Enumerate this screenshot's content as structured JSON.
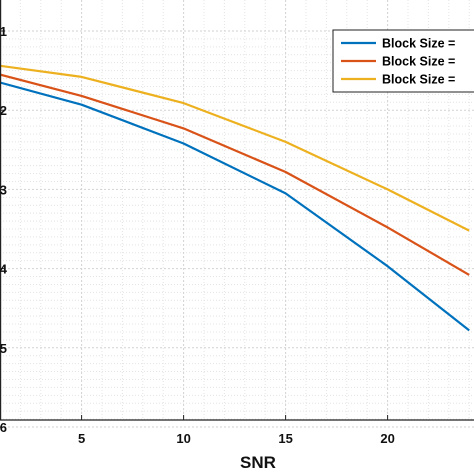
{
  "chart_data": {
    "type": "line",
    "xlabel": "SNR",
    "ylabel": "",
    "xlim": [
      1,
      24
    ],
    "ylim": [
      1,
      6
    ],
    "y_reversed": true,
    "x_ticks": [
      5,
      10,
      15,
      20
    ],
    "y_ticks": [
      1,
      2,
      3,
      4,
      5,
      6
    ],
    "y_tick_labels": [
      "1",
      "2",
      "3",
      "4",
      "5",
      "6"
    ],
    "grid": true,
    "minor_grid": true,
    "legend_position": "top-right",
    "series": [
      {
        "name": "Block Size =",
        "color": "#0072BD",
        "x": [
          1,
          5,
          10,
          15,
          20,
          24
        ],
        "y": [
          1.65,
          1.93,
          2.42,
          3.05,
          3.97,
          4.78
        ]
      },
      {
        "name": "Block Size =",
        "color": "#D95319",
        "x": [
          1,
          5,
          10,
          15,
          20,
          24
        ],
        "y": [
          1.55,
          1.82,
          2.23,
          2.78,
          3.48,
          4.08
        ]
      },
      {
        "name": "Block Size =",
        "color": "#EDB120",
        "x": [
          1,
          5,
          10,
          15,
          20,
          24
        ],
        "y": [
          1.44,
          1.58,
          1.91,
          2.4,
          3.0,
          3.52
        ]
      }
    ]
  }
}
